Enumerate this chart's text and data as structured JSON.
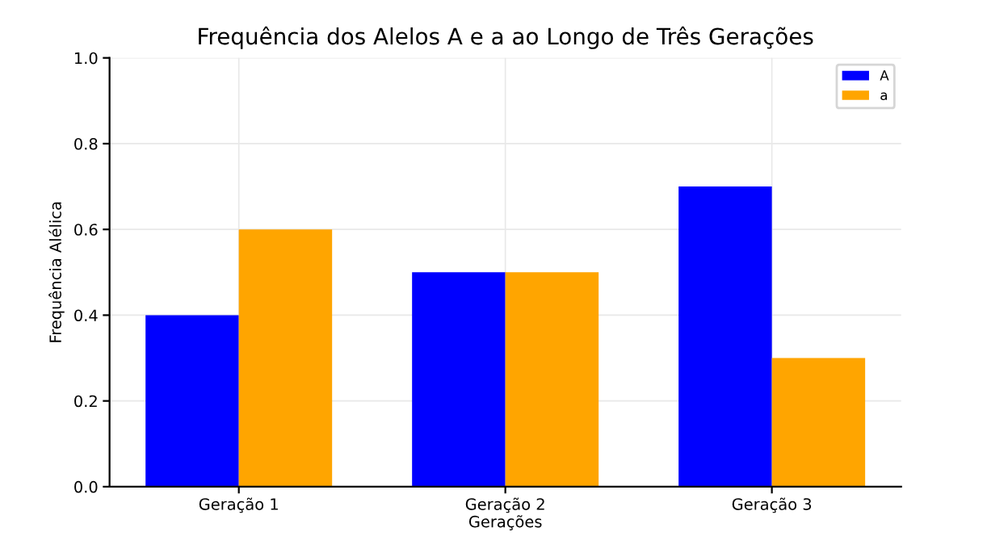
{
  "chart_data": {
    "type": "bar",
    "title": "Frequência dos Alelos A e a ao Longo de Três Gerações",
    "xlabel": "Gerações",
    "ylabel": "Frequência Alélica",
    "categories": [
      "Geração 1",
      "Geração 2",
      "Geração 3"
    ],
    "series": [
      {
        "name": "A",
        "color": "#0000ff",
        "values": [
          0.4,
          0.5,
          0.7
        ]
      },
      {
        "name": "a",
        "color": "#ffa500",
        "values": [
          0.6,
          0.5,
          0.3
        ]
      }
    ],
    "ylim": [
      0,
      1.0
    ],
    "yticks": [
      {
        "value": 0,
        "label": "0.0"
      },
      {
        "value": 0.2,
        "label": "0.2"
      },
      {
        "value": 0.4,
        "label": "0.4"
      },
      {
        "value": 0.6,
        "label": "0.6"
      },
      {
        "value": 0.8,
        "label": "0.8"
      },
      {
        "value": 1.0,
        "label": "1.0"
      }
    ],
    "grid": true,
    "legend": "top right"
  }
}
